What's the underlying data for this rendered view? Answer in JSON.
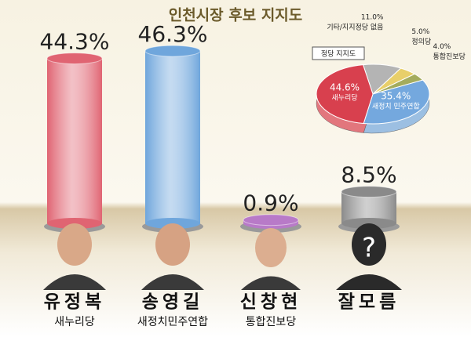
{
  "chart_data": [
    {
      "type": "bar",
      "title": "인천시장 후보 지지도",
      "categories": [
        "유정복",
        "송영길",
        "신창현",
        "잘모름"
      ],
      "subtitles": [
        "새누리당",
        "새정치민주연합",
        "통합진보당",
        null
      ],
      "values": [
        44.3,
        46.3,
        0.9,
        8.5
      ],
      "value_labels": [
        "44.3%",
        "46.3%",
        "0.9%",
        "8.5%"
      ],
      "colors": [
        "#e06472",
        "#6fa6dc",
        "#b87ac8",
        "#8a8a8a"
      ]
    },
    {
      "type": "pie",
      "title": "정당 지지도",
      "categories": [
        "기타/지지정당 없음",
        "정의당",
        "통합진보당",
        "새정치 민주연합",
        "새누리당"
      ],
      "values": [
        11.0,
        5.0,
        4.0,
        35.4,
        44.6
      ],
      "value_labels": [
        "11.0%",
        "5.0%",
        "4.0%",
        "35.4%",
        "44.6%"
      ],
      "colors": [
        "#b4b4b4",
        "#e8cf6a",
        "#a4ac5e",
        "#74a8de",
        "#d8404e"
      ]
    }
  ]
}
